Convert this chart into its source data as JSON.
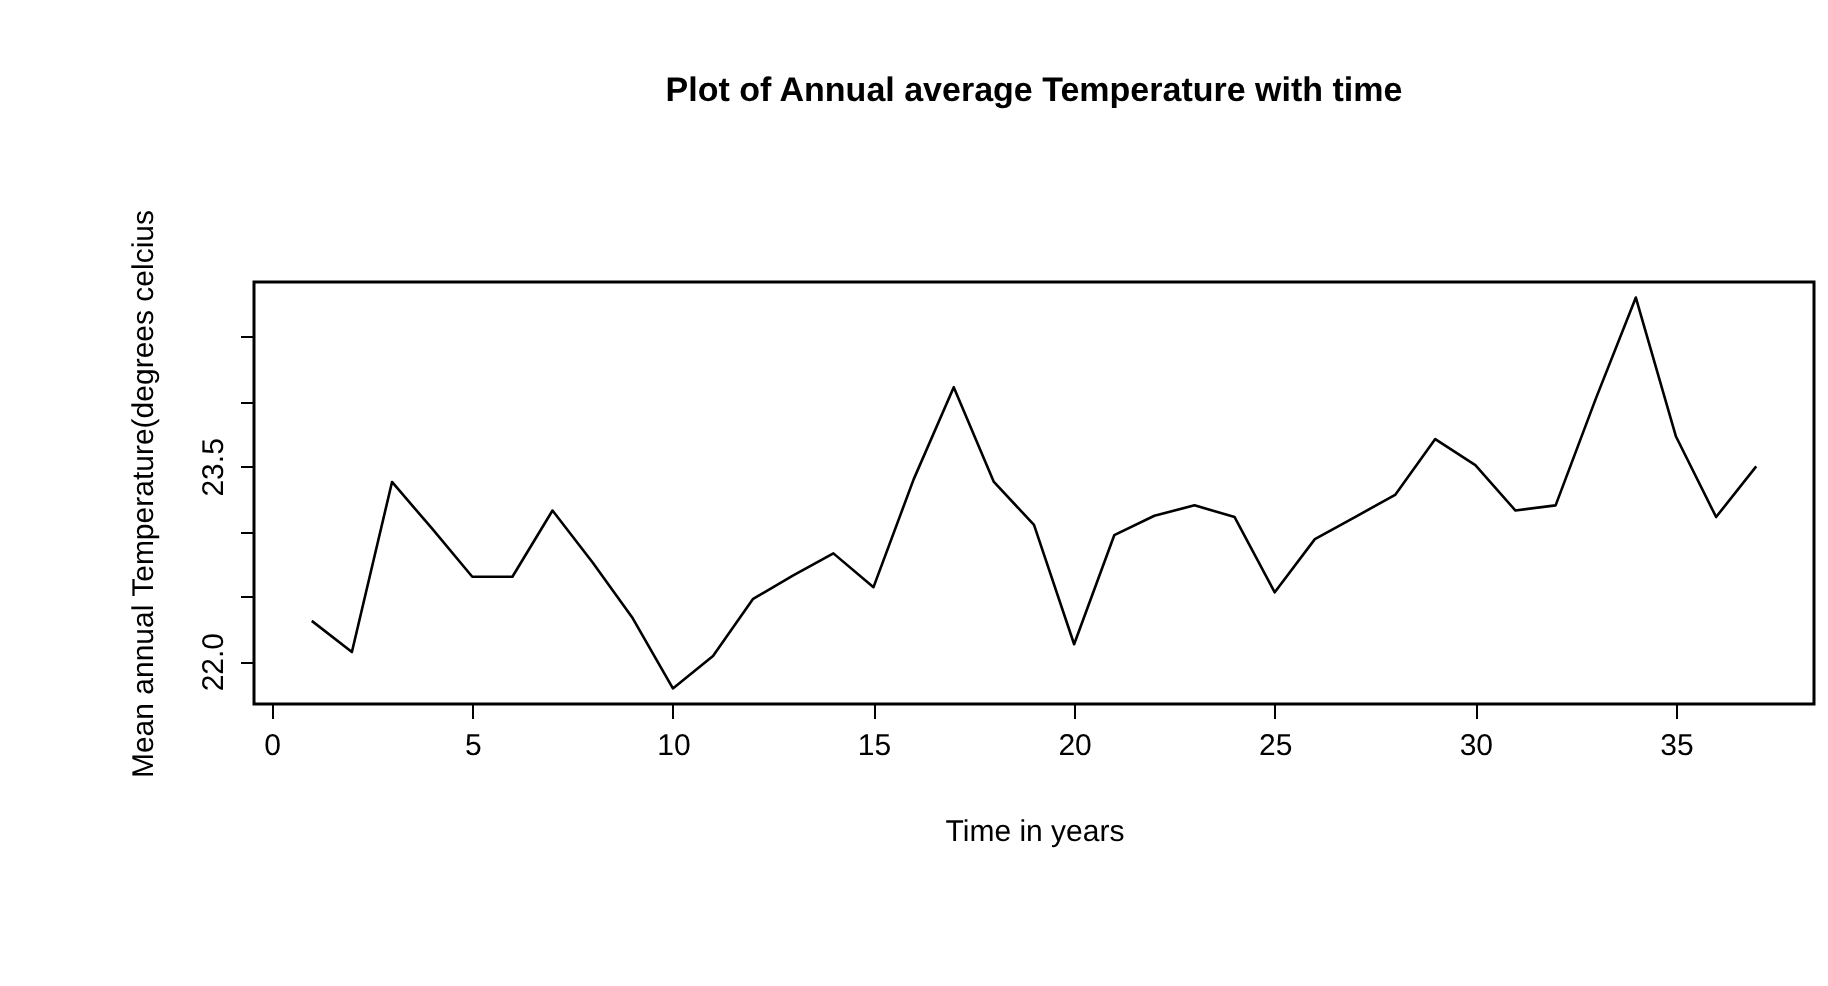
{
  "chart_data": {
    "type": "line",
    "title": "Plot of Annual average Temperature with time",
    "xlabel": "Time in years",
    "ylabel": "Mean annual Temperature(degrees celcius",
    "x": [
      1,
      2,
      3,
      4,
      5,
      6,
      7,
      8,
      9,
      10,
      11,
      12,
      13,
      14,
      15,
      16,
      17,
      18,
      19,
      20,
      21,
      22,
      23,
      24,
      25,
      26,
      27,
      28,
      29,
      30,
      31,
      32,
      33,
      34,
      35,
      36,
      37
    ],
    "series": [
      {
        "color": "#000000",
        "values": [
          22.31,
          22.07,
          23.38,
          23.02,
          22.65,
          22.65,
          23.16,
          22.76,
          22.33,
          21.79,
          22.04,
          22.48,
          22.66,
          22.83,
          22.57,
          23.4,
          24.11,
          23.38,
          23.05,
          22.13,
          22.97,
          23.12,
          23.2,
          23.11,
          22.53,
          22.94,
          23.11,
          23.28,
          23.71,
          23.51,
          23.16,
          23.2,
          24.02,
          24.8,
          23.73,
          23.11,
          23.5
        ]
      }
    ],
    "xlim": [
      -0.44,
      38.44
    ],
    "xticks": [
      0,
      5,
      10,
      15,
      20,
      25,
      30,
      35
    ],
    "ylim": [
      21.67,
      24.92
    ],
    "yticks": [
      {
        "value": 22.0,
        "label": "22.0"
      },
      {
        "value": 22.5,
        "label": null
      },
      {
        "value": 23.0,
        "label": null
      },
      23.5,
      {
        "value": 24.0,
        "label": null
      },
      {
        "value": 24.5,
        "label": null
      }
    ],
    "grid": false,
    "marker": "none",
    "line_style": "solid"
  }
}
